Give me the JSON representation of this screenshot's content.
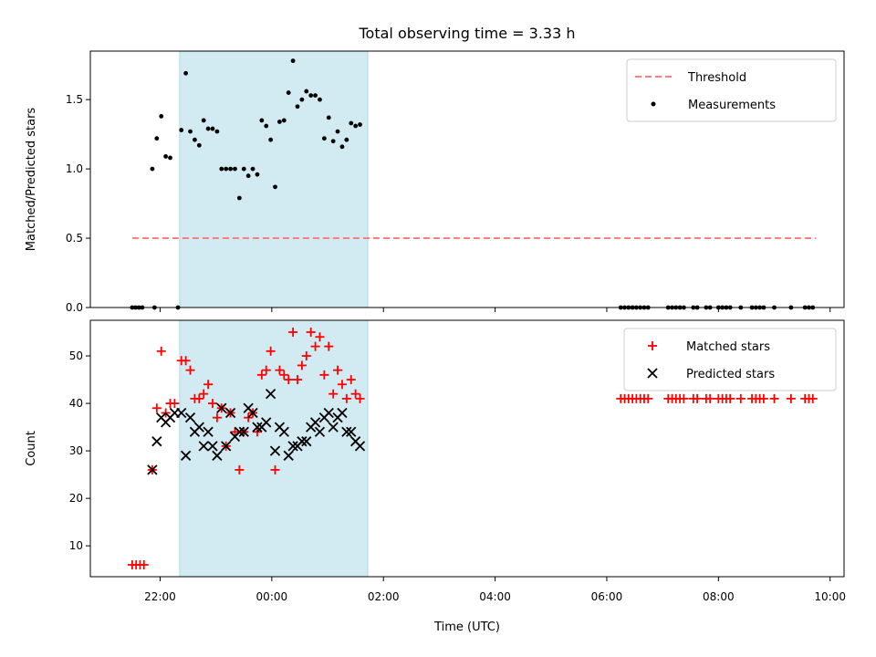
{
  "chart_data": {
    "title": "Total observing time = 3.33 h",
    "xlabel": "Time (UTC)",
    "x_unit": "hours since 00:00 UTC of 2nd day (negative = previous day)",
    "xlim": [
      -3.25,
      10.25
    ],
    "xticks": [
      -2,
      0,
      2,
      4,
      6,
      8,
      10
    ],
    "xticklabels": [
      "22:00",
      "00:00",
      "02:00",
      "04:00",
      "06:00",
      "08:00",
      "10:00"
    ],
    "shaded_span": [
      -1.65,
      1.72
    ],
    "shaded_color": "#add8e6",
    "panels": [
      {
        "type": "scatter",
        "ylabel": "Matched/Predicted stars",
        "ylim": [
          0,
          1.85
        ],
        "yticks": [
          0.0,
          0.5,
          1.0,
          1.5
        ],
        "yticklabels": [
          "0.0",
          "0.5",
          "1.0",
          "1.5"
        ],
        "legend_position": "top-right",
        "threshold": {
          "name": "Threshold",
          "y": 0.5,
          "x_range": [
            -2.5,
            9.75
          ],
          "color": "#ff7f7f",
          "style": "dashed"
        },
        "series": [
          {
            "name": "Measurements",
            "color": "#000000",
            "marker": "dot",
            "points": [
              [
                -2.5,
                0
              ],
              [
                -2.44,
                0
              ],
              [
                -2.38,
                0
              ],
              [
                -2.32,
                0
              ],
              [
                -2.1,
                0
              ],
              [
                -1.68,
                0
              ],
              [
                -2.14,
                1.0
              ],
              [
                -2.06,
                1.22
              ],
              [
                -1.98,
                1.38
              ],
              [
                -1.9,
                1.09
              ],
              [
                -1.82,
                1.08
              ],
              [
                -1.62,
                1.28
              ],
              [
                -1.54,
                1.69
              ],
              [
                -1.46,
                1.27
              ],
              [
                -1.38,
                1.21
              ],
              [
                -1.3,
                1.17
              ],
              [
                -1.22,
                1.35
              ],
              [
                -1.14,
                1.29
              ],
              [
                -1.06,
                1.29
              ],
              [
                -0.98,
                1.27
              ],
              [
                -0.9,
                1.0
              ],
              [
                -0.82,
                1.0
              ],
              [
                -0.74,
                1.0
              ],
              [
                -0.66,
                1.0
              ],
              [
                -0.58,
                0.79
              ],
              [
                -0.5,
                1.0
              ],
              [
                -0.42,
                0.95
              ],
              [
                -0.34,
                1.0
              ],
              [
                -0.26,
                0.96
              ],
              [
                -0.18,
                1.35
              ],
              [
                -0.1,
                1.31
              ],
              [
                -0.02,
                1.21
              ],
              [
                0.06,
                0.87
              ],
              [
                0.14,
                1.34
              ],
              [
                0.22,
                1.35
              ],
              [
                0.3,
                1.55
              ],
              [
                0.38,
                1.78
              ],
              [
                0.46,
                1.45
              ],
              [
                0.54,
                1.5
              ],
              [
                0.62,
                1.56
              ],
              [
                0.7,
                1.53
              ],
              [
                0.78,
                1.53
              ],
              [
                0.86,
                1.5
              ],
              [
                0.94,
                1.22
              ],
              [
                1.02,
                1.37
              ],
              [
                1.1,
                1.2
              ],
              [
                1.18,
                1.27
              ],
              [
                1.26,
                1.16
              ],
              [
                1.34,
                1.21
              ],
              [
                1.42,
                1.33
              ],
              [
                1.5,
                1.31
              ],
              [
                1.58,
                1.32
              ],
              [
                6.25,
                0
              ],
              [
                6.32,
                0
              ],
              [
                6.39,
                0
              ],
              [
                6.46,
                0
              ],
              [
                6.53,
                0
              ],
              [
                6.6,
                0
              ],
              [
                6.67,
                0
              ],
              [
                6.74,
                0
              ],
              [
                7.1,
                0
              ],
              [
                7.17,
                0
              ],
              [
                7.24,
                0
              ],
              [
                7.31,
                0
              ],
              [
                7.38,
                0
              ],
              [
                7.55,
                0
              ],
              [
                7.62,
                0
              ],
              [
                7.78,
                0
              ],
              [
                7.85,
                0
              ],
              [
                8.0,
                0
              ],
              [
                8.07,
                0
              ],
              [
                8.14,
                0
              ],
              [
                8.21,
                0
              ],
              [
                8.4,
                0
              ],
              [
                8.6,
                0
              ],
              [
                8.67,
                0
              ],
              [
                8.74,
                0
              ],
              [
                8.81,
                0
              ],
              [
                9.0,
                0
              ],
              [
                9.3,
                0
              ],
              [
                9.55,
                0
              ],
              [
                9.62,
                0
              ],
              [
                9.69,
                0
              ]
            ]
          }
        ]
      },
      {
        "type": "scatter",
        "ylabel": "Count",
        "ylim": [
          3.5,
          57.5
        ],
        "yticks": [
          10,
          20,
          30,
          40,
          50
        ],
        "yticklabels": [
          "10",
          "20",
          "30",
          "40",
          "50"
        ],
        "legend_position": "top-right",
        "series": [
          {
            "name": "Matched stars",
            "color": "#ff0000",
            "marker": "plus",
            "points": [
              [
                -2.5,
                6
              ],
              [
                -2.43,
                6
              ],
              [
                -2.36,
                6
              ],
              [
                -2.29,
                6
              ],
              [
                -2.14,
                26
              ],
              [
                -2.06,
                39
              ],
              [
                -1.98,
                51
              ],
              [
                -1.9,
                38
              ],
              [
                -1.82,
                40
              ],
              [
                -1.74,
                40
              ],
              [
                -1.62,
                49
              ],
              [
                -1.54,
                49
              ],
              [
                -1.46,
                47
              ],
              [
                -1.38,
                41
              ],
              [
                -1.3,
                41
              ],
              [
                -1.22,
                42
              ],
              [
                -1.14,
                44
              ],
              [
                -1.06,
                40
              ],
              [
                -0.98,
                37
              ],
              [
                -0.9,
                39
              ],
              [
                -0.82,
                31
              ],
              [
                -0.74,
                38
              ],
              [
                -0.66,
                34
              ],
              [
                -0.58,
                26
              ],
              [
                -0.5,
                34
              ],
              [
                -0.42,
                37
              ],
              [
                -0.34,
                38
              ],
              [
                -0.26,
                34
              ],
              [
                -0.18,
                46
              ],
              [
                -0.1,
                47
              ],
              [
                -0.02,
                51
              ],
              [
                0.06,
                26
              ],
              [
                0.14,
                47
              ],
              [
                0.22,
                46
              ],
              [
                0.3,
                45
              ],
              [
                0.38,
                55
              ],
              [
                0.46,
                45
              ],
              [
                0.54,
                48
              ],
              [
                0.62,
                50
              ],
              [
                0.7,
                55
              ],
              [
                0.78,
                52
              ],
              [
                0.86,
                54
              ],
              [
                0.94,
                46
              ],
              [
                1.02,
                52
              ],
              [
                1.1,
                42
              ],
              [
                1.18,
                47
              ],
              [
                1.26,
                44
              ],
              [
                1.34,
                41
              ],
              [
                1.42,
                45
              ],
              [
                1.5,
                42
              ],
              [
                1.58,
                41
              ],
              [
                6.25,
                41
              ],
              [
                6.32,
                41
              ],
              [
                6.39,
                41
              ],
              [
                6.46,
                41
              ],
              [
                6.53,
                41
              ],
              [
                6.6,
                41
              ],
              [
                6.67,
                41
              ],
              [
                6.74,
                41
              ],
              [
                7.1,
                41
              ],
              [
                7.17,
                41
              ],
              [
                7.24,
                41
              ],
              [
                7.31,
                41
              ],
              [
                7.38,
                41
              ],
              [
                7.55,
                41
              ],
              [
                7.62,
                41
              ],
              [
                7.78,
                41
              ],
              [
                7.85,
                41
              ],
              [
                8.0,
                41
              ],
              [
                8.07,
                41
              ],
              [
                8.14,
                41
              ],
              [
                8.21,
                41
              ],
              [
                8.4,
                41
              ],
              [
                8.6,
                41
              ],
              [
                8.67,
                41
              ],
              [
                8.74,
                41
              ],
              [
                8.81,
                41
              ],
              [
                9.0,
                41
              ],
              [
                9.3,
                41
              ],
              [
                9.55,
                41
              ],
              [
                9.62,
                41
              ],
              [
                9.69,
                41
              ]
            ]
          },
          {
            "name": "Predicted stars",
            "color": "#000000",
            "marker": "x",
            "points": [
              [
                -2.14,
                26
              ],
              [
                -2.06,
                32
              ],
              [
                -1.98,
                37
              ],
              [
                -1.9,
                36
              ],
              [
                -1.82,
                37
              ],
              [
                -1.74,
                38
              ],
              [
                -1.62,
                38
              ],
              [
                -1.54,
                29
              ],
              [
                -1.46,
                37
              ],
              [
                -1.38,
                34
              ],
              [
                -1.3,
                35
              ],
              [
                -1.22,
                31
              ],
              [
                -1.14,
                34
              ],
              [
                -1.06,
                31
              ],
              [
                -0.98,
                29
              ],
              [
                -0.9,
                39
              ],
              [
                -0.82,
                31
              ],
              [
                -0.74,
                38
              ],
              [
                -0.66,
                33
              ],
              [
                -0.58,
                34
              ],
              [
                -0.5,
                34
              ],
              [
                -0.42,
                39
              ],
              [
                -0.34,
                38
              ],
              [
                -0.26,
                35
              ],
              [
                -0.18,
                35
              ],
              [
                -0.1,
                36
              ],
              [
                -0.02,
                42
              ],
              [
                0.06,
                30
              ],
              [
                0.14,
                35
              ],
              [
                0.22,
                34
              ],
              [
                0.3,
                29
              ],
              [
                0.38,
                31
              ],
              [
                0.46,
                31
              ],
              [
                0.54,
                32
              ],
              [
                0.62,
                32
              ],
              [
                0.7,
                35
              ],
              [
                0.78,
                36
              ],
              [
                0.86,
                34
              ],
              [
                0.94,
                37
              ],
              [
                1.02,
                38
              ],
              [
                1.1,
                35
              ],
              [
                1.18,
                37
              ],
              [
                1.26,
                38
              ],
              [
                1.34,
                34
              ],
              [
                1.42,
                34
              ],
              [
                1.5,
                32
              ],
              [
                1.58,
                31
              ]
            ]
          }
        ]
      }
    ]
  }
}
